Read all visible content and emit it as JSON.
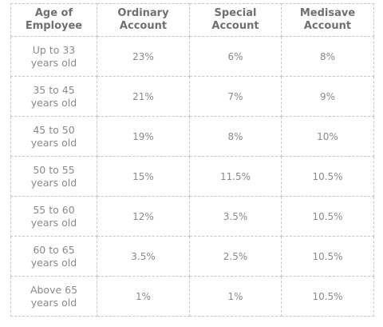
{
  "table": {
    "headers": [
      "Age of\nEmployee",
      "Ordinary\nAccount",
      "Special\nAccount",
      "Medisave\nAccount"
    ],
    "rows": [
      {
        "age": "Up to 33\nyears old",
        "ordinary": "23%",
        "special": "6%",
        "medisave": "8%"
      },
      {
        "age": "35 to 45\nyears old",
        "ordinary": "21%",
        "special": "7%",
        "medisave": "9%"
      },
      {
        "age": "45 to 50\nyears old",
        "ordinary": "19%",
        "special": "8%",
        "medisave": "10%"
      },
      {
        "age": "50 to 55\nyears old",
        "ordinary": "15%",
        "special": "11.5%",
        "medisave": "10.5%"
      },
      {
        "age": "55 to 60\nyears old",
        "ordinary": "12%",
        "special": "3.5%",
        "medisave": "10.5%"
      },
      {
        "age": "60 to 65\nyears old",
        "ordinary": "3.5%",
        "special": "2.5%",
        "medisave": "10.5%"
      },
      {
        "age": "Above 65\nyears old",
        "ordinary": "1%",
        "special": "1%",
        "medisave": "10.5%"
      }
    ]
  },
  "colors": {
    "border": "#c6c6c6",
    "header_text": "#707070",
    "cell_text": "#8a8a8a",
    "background": "#ffffff"
  }
}
